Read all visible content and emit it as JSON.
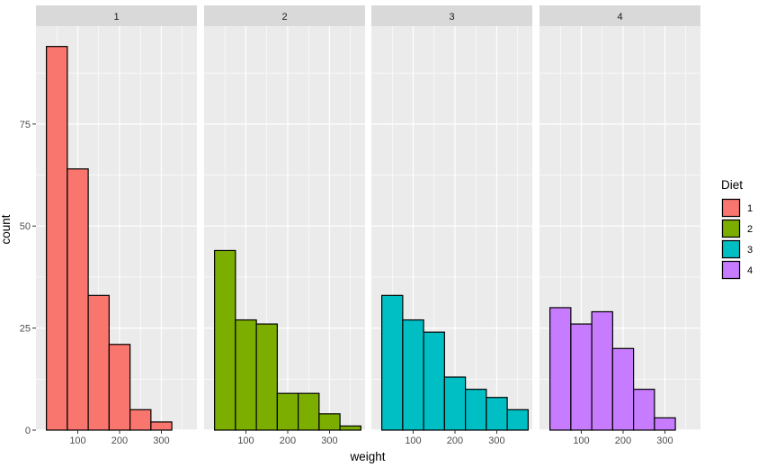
{
  "chart_data": {
    "type": "bar",
    "subtype": "faceted-histogram",
    "facet_by": "Diet",
    "xlabel": "weight",
    "ylabel": "count",
    "x_ticks": [
      100,
      200,
      300
    ],
    "y_ticks": [
      0,
      25,
      50,
      75
    ],
    "xlim": [
      0,
      385
    ],
    "ylim": [
      0,
      99
    ],
    "bin_edges": [
      25,
      75,
      125,
      175,
      225,
      275,
      325,
      375
    ],
    "grid": true,
    "legend": {
      "title": "Diet",
      "position": "right",
      "items": [
        {
          "label": "1",
          "color": "#F8766D"
        },
        {
          "label": "2",
          "color": "#7CAE00"
        },
        {
          "label": "3",
          "color": "#00BFC4"
        },
        {
          "label": "4",
          "color": "#C77CFF"
        }
      ]
    },
    "series": [
      {
        "name": "1",
        "color": "#F8766D",
        "values": [
          94,
          64,
          33,
          21,
          5,
          2,
          0
        ]
      },
      {
        "name": "2",
        "color": "#7CAE00",
        "values": [
          44,
          27,
          26,
          9,
          9,
          4,
          1
        ]
      },
      {
        "name": "3",
        "color": "#00BFC4",
        "values": [
          33,
          27,
          24,
          13,
          10,
          8,
          5
        ]
      },
      {
        "name": "4",
        "color": "#C77CFF",
        "values": [
          30,
          26,
          29,
          20,
          10,
          3,
          0
        ]
      }
    ]
  }
}
